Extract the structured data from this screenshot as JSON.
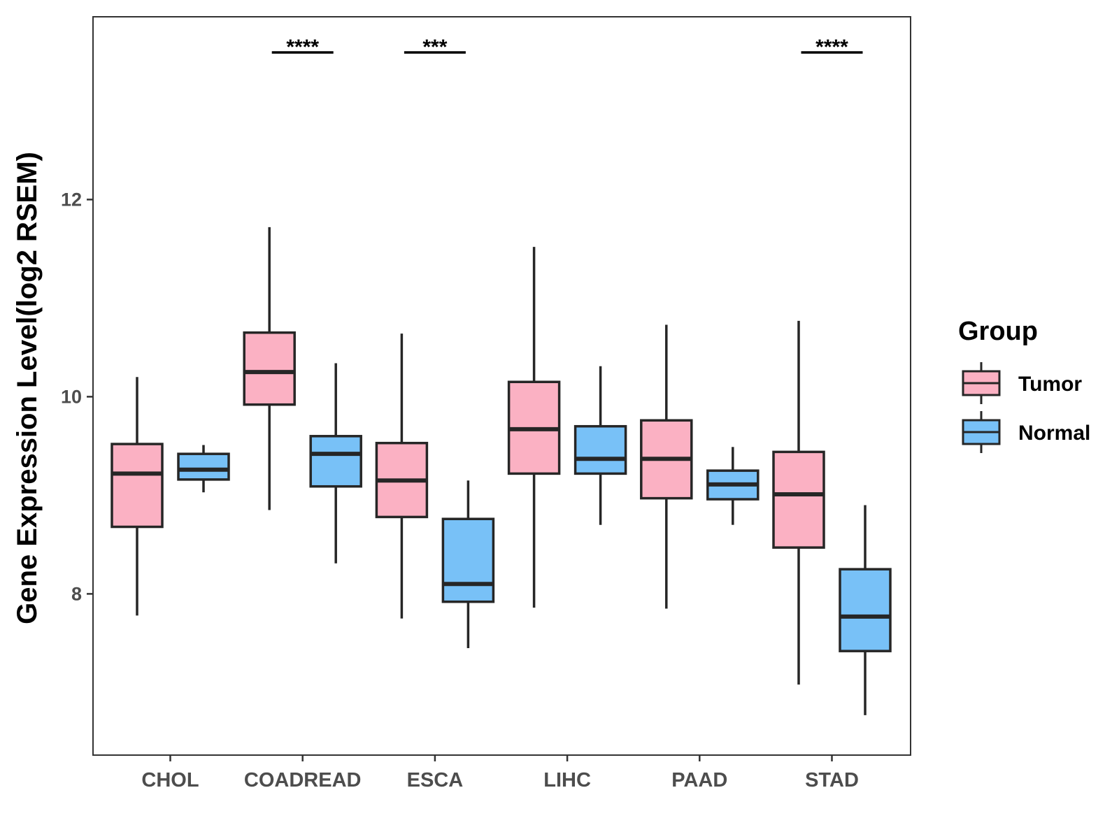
{
  "chart_data": {
    "type": "boxplot",
    "title": "",
    "xlabel": "",
    "ylabel": "Gene Expression Level(log2 RSEM)",
    "ylim": [
      6.4,
      13.9
    ],
    "yticks": [
      8,
      10,
      12
    ],
    "ytick_labels": [
      "8",
      "10",
      "12"
    ],
    "grid": false,
    "legend_position": "right",
    "legend_title": "Group",
    "categories": [
      "CHOL",
      "COADREAD",
      "ESCA",
      "LIHC",
      "PAAD",
      "STAD"
    ],
    "series": [
      {
        "name": "Tumor",
        "color": "#FBB1C3",
        "boxes": [
          {
            "min": 7.78,
            "q1": 8.68,
            "median": 9.22,
            "q3": 9.52,
            "max": 10.2
          },
          {
            "min": 8.85,
            "q1": 9.92,
            "median": 10.25,
            "q3": 10.65,
            "max": 11.72
          },
          {
            "min": 7.75,
            "q1": 8.78,
            "median": 9.15,
            "q3": 9.53,
            "max": 10.64
          },
          {
            "min": 7.86,
            "q1": 9.22,
            "median": 9.67,
            "q3": 10.15,
            "max": 11.52
          },
          {
            "min": 7.85,
            "q1": 8.97,
            "median": 9.37,
            "q3": 9.76,
            "max": 10.73
          },
          {
            "min": 7.08,
            "q1": 8.47,
            "median": 9.01,
            "q3": 9.44,
            "max": 10.77
          }
        ]
      },
      {
        "name": "Normal",
        "color": "#78C1F7",
        "boxes": [
          {
            "min": 9.03,
            "q1": 9.16,
            "median": 9.26,
            "q3": 9.42,
            "max": 9.51
          },
          {
            "min": 8.31,
            "q1": 9.09,
            "median": 9.42,
            "q3": 9.6,
            "max": 10.34
          },
          {
            "min": 7.45,
            "q1": 7.92,
            "median": 8.1,
            "q3": 8.76,
            "max": 9.15
          },
          {
            "min": 8.7,
            "q1": 9.22,
            "median": 9.37,
            "q3": 9.7,
            "max": 10.31
          },
          {
            "min": 8.7,
            "q1": 8.96,
            "median": 9.11,
            "q3": 9.25,
            "max": 9.49
          },
          {
            "min": 6.77,
            "q1": 7.42,
            "median": 7.77,
            "q3": 8.25,
            "max": 8.9
          }
        ]
      }
    ],
    "significance": [
      {
        "category": "COADREAD",
        "label": "****"
      },
      {
        "category": "ESCA",
        "label": "***"
      },
      {
        "category": "STAD",
        "label": "****"
      }
    ]
  },
  "colors": {
    "tumor": "#FBB1C3",
    "normal": "#78C1F7",
    "stroke": "#262626",
    "axis": "#333333"
  }
}
